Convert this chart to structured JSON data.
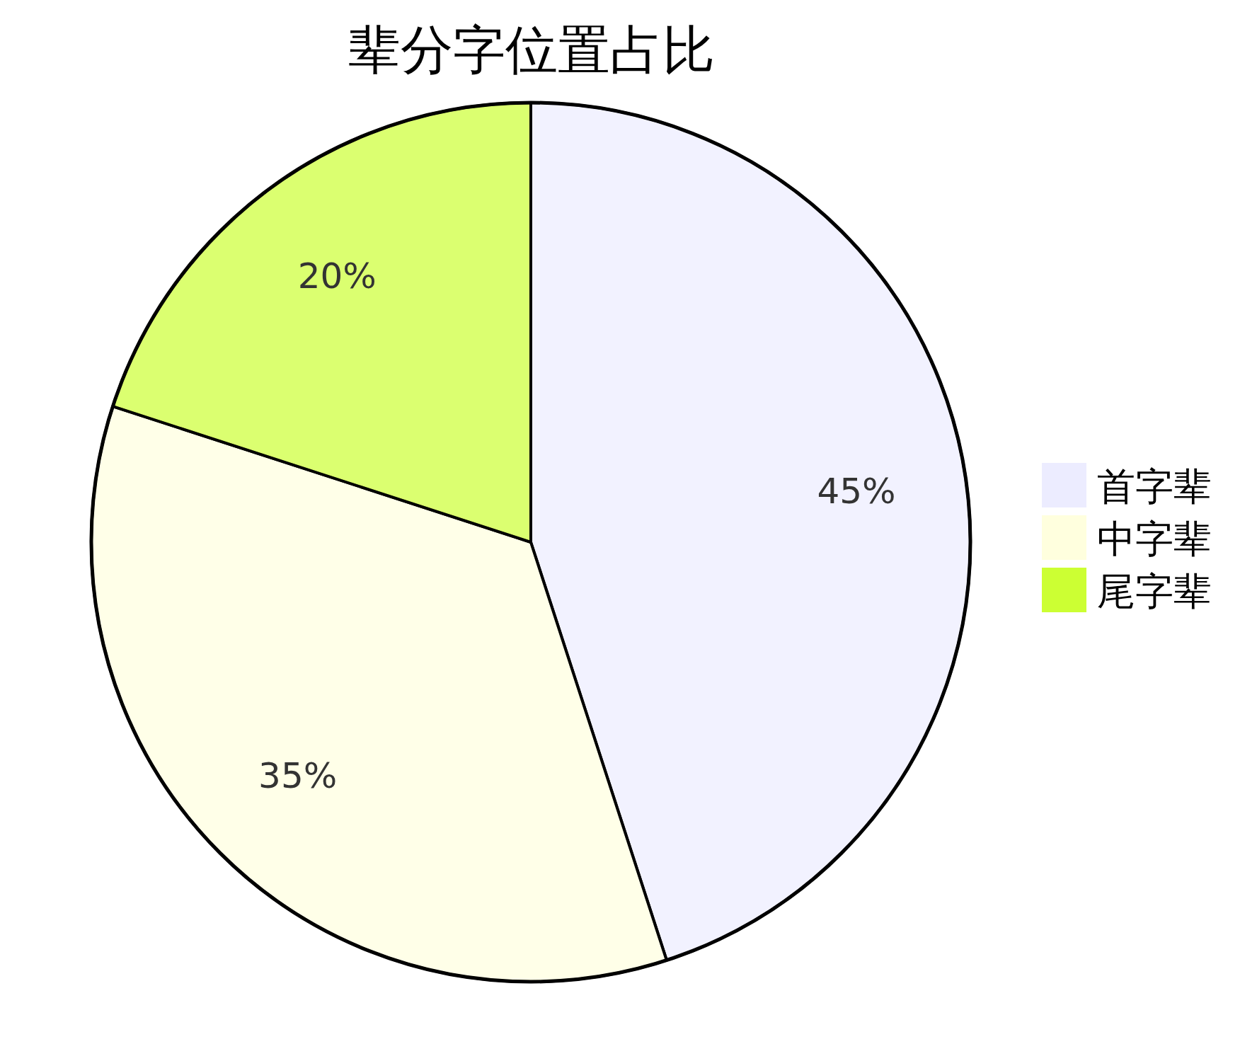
{
  "chart_data": {
    "type": "pie",
    "title": "辈分字位置占比",
    "categories": [
      "首字辈",
      "中字辈",
      "尾字辈"
    ],
    "values": [
      45,
      35,
      20
    ],
    "colors": [
      "#ececff",
      "#ffffde",
      "#ccff33"
    ],
    "value_labels": [
      "45%",
      "35%",
      "20%"
    ],
    "legend": "right"
  }
}
